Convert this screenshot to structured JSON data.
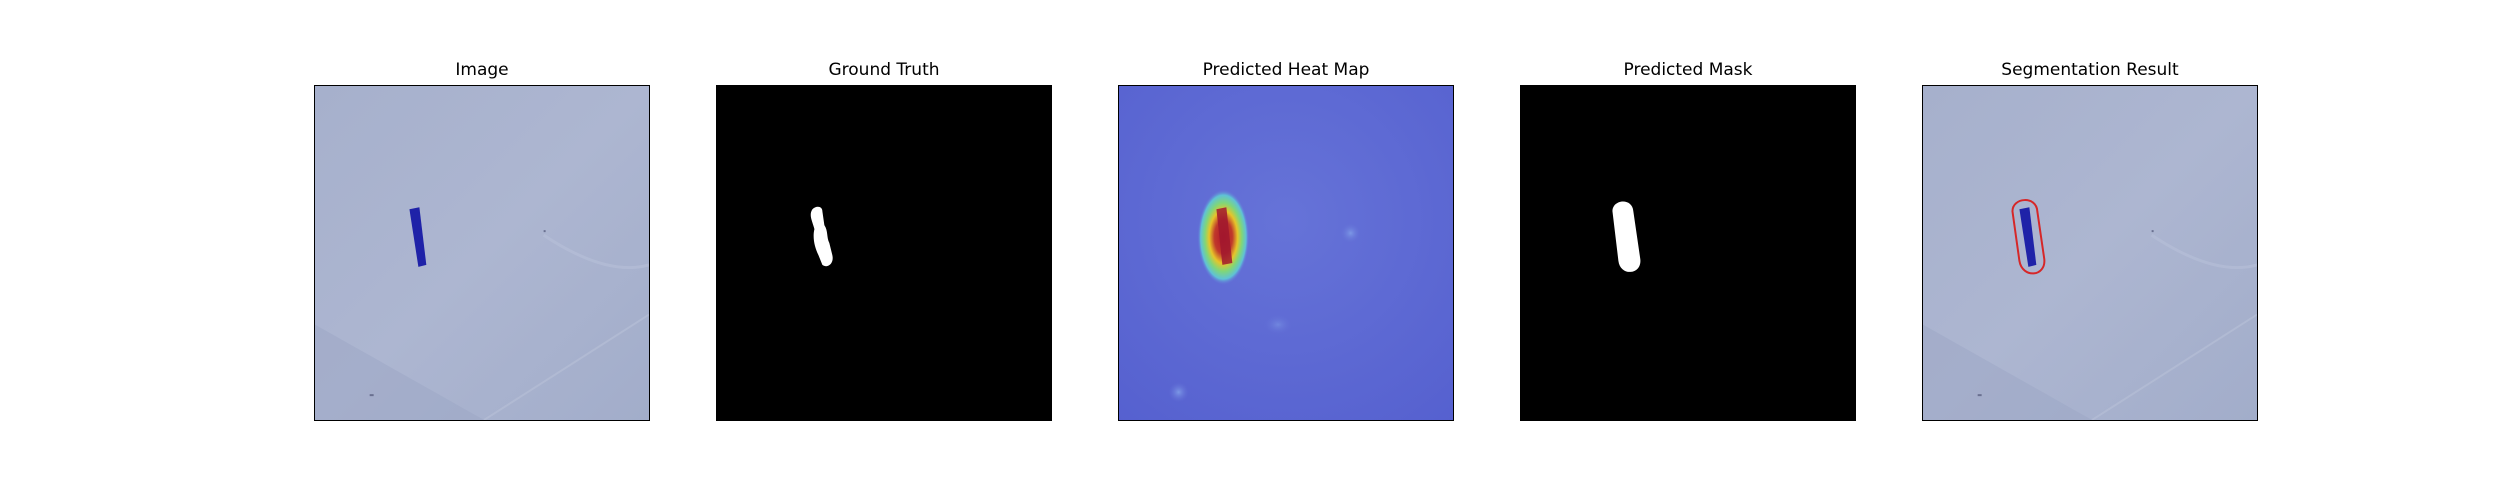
{
  "panels": [
    {
      "title": "Image"
    },
    {
      "title": "Ground Truth"
    },
    {
      "title": "Predicted Heat Map"
    },
    {
      "title": "Predicted Mask"
    },
    {
      "title": "Segmentation Result"
    }
  ],
  "colors": {
    "background_image": "#a9b3cf",
    "object_blue": "#1f22a8",
    "mask_white": "#ffffff",
    "mask_black": "#000000",
    "heatmap_base": "#5a67d6",
    "heatmap_hot": "#b3142c",
    "contour_red": "#d62728"
  }
}
